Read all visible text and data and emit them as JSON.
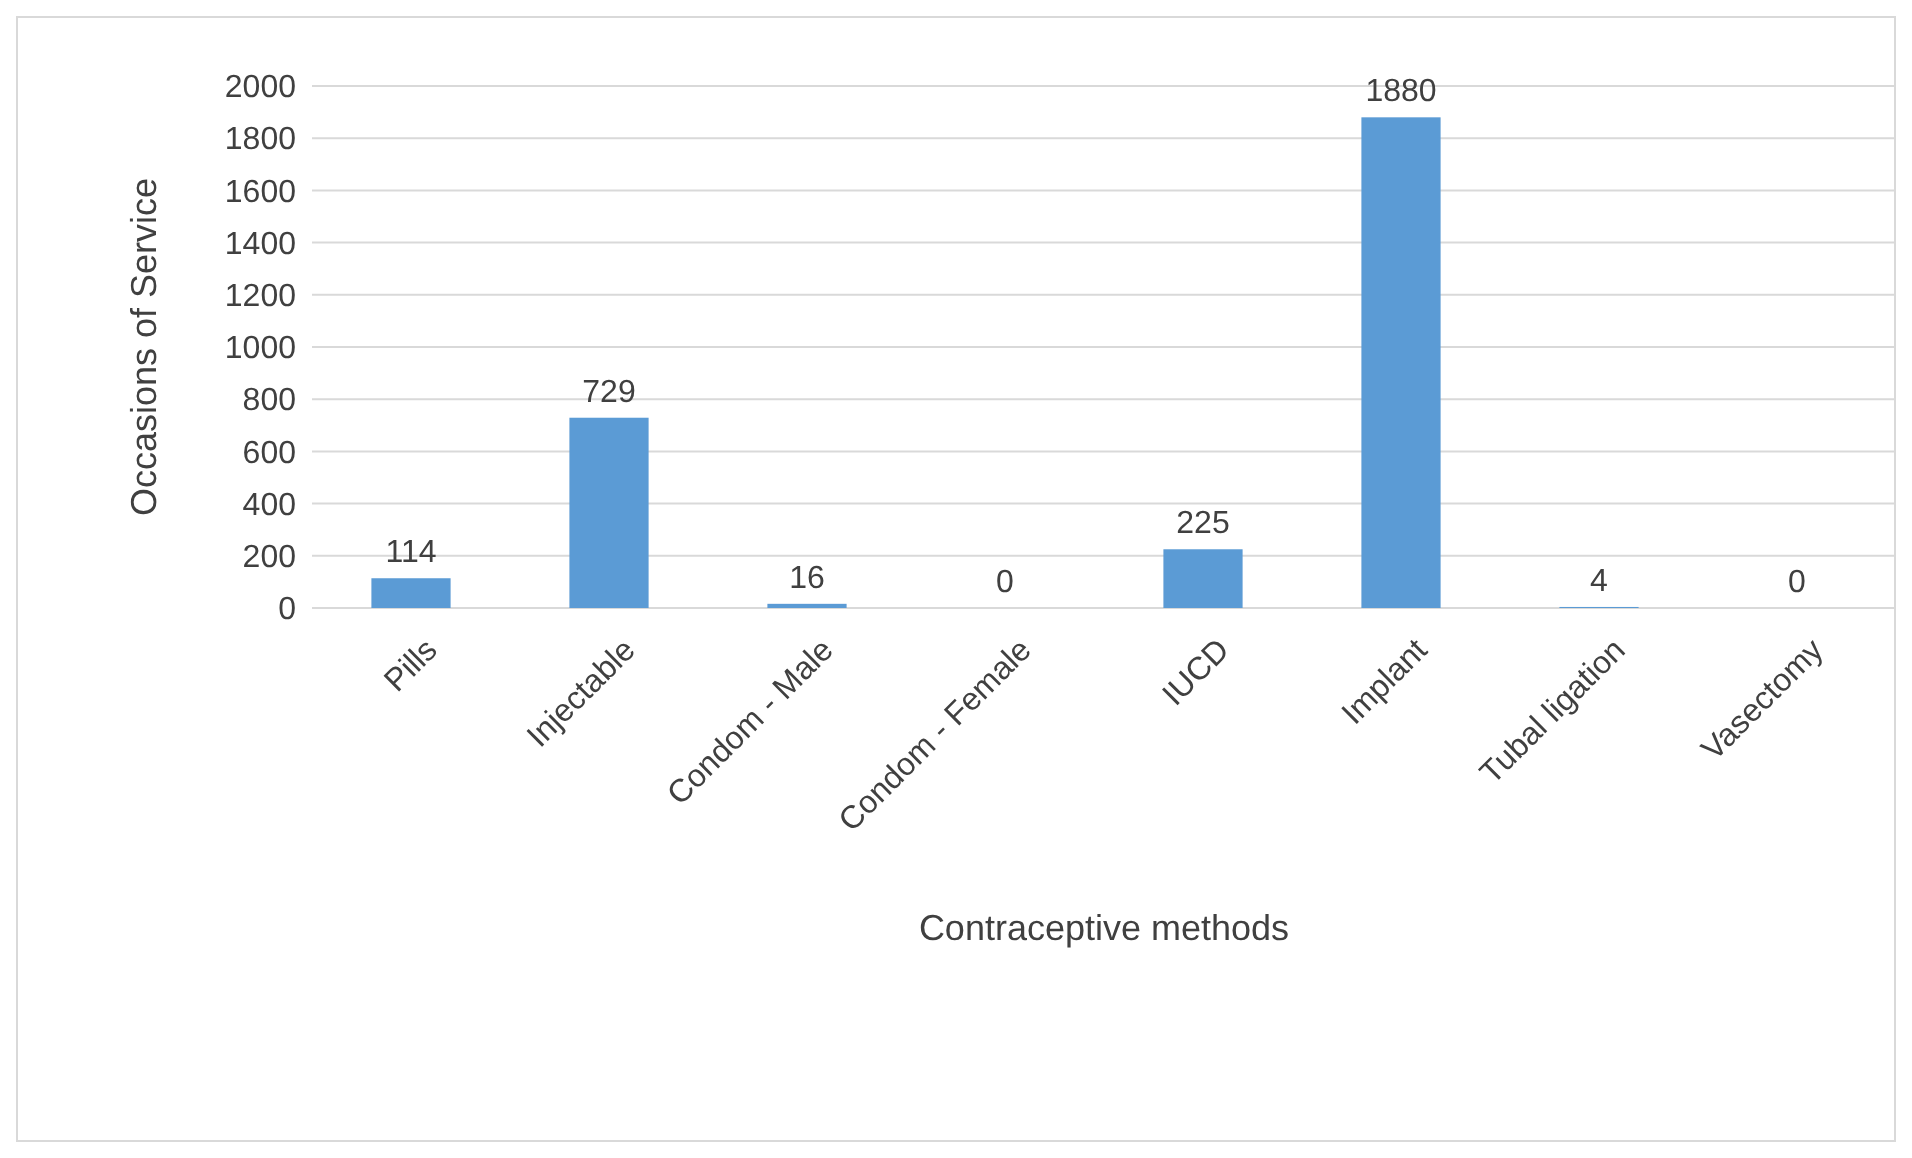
{
  "chart_data": {
    "type": "bar",
    "xlabel": "Contraceptive methods",
    "ylabel": "Occasions of Service",
    "categories": [
      "Pills",
      "Injectable",
      "Condom - Male",
      "Condom - Female",
      "IUCD",
      "Implant",
      "Tubal ligation",
      "Vasectomy"
    ],
    "values": [
      114,
      729,
      16,
      0,
      225,
      1880,
      4,
      0
    ],
    "color": "#5b9bd5",
    "ylim": [
      0,
      2000
    ],
    "yticks": [
      0,
      200,
      400,
      600,
      800,
      1000,
      1200,
      1400,
      1600,
      1800,
      2000
    ],
    "grid": "y",
    "data_labels": true
  }
}
